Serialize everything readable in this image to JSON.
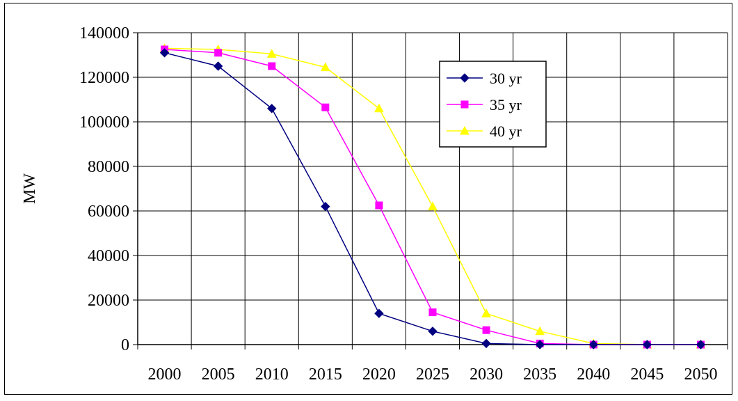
{
  "chart_data": {
    "type": "line",
    "title": "",
    "xlabel": "",
    "ylabel": "MW",
    "categories": [
      "2000",
      "2005",
      "2010",
      "2015",
      "2020",
      "2025",
      "2030",
      "2035",
      "2040",
      "2045",
      "2050"
    ],
    "ylim": [
      0,
      140000
    ],
    "yticks": [
      0,
      20000,
      40000,
      60000,
      80000,
      100000,
      120000,
      140000
    ],
    "ytick_labels": [
      "0",
      "20000",
      "40000",
      "60000",
      "80000",
      "100000",
      "120000",
      "140000"
    ],
    "grid": true,
    "legend_position": "top-right (inside plot)",
    "series": [
      {
        "name": "30 yr",
        "color": "#000080",
        "marker": "diamond",
        "values": [
          131000,
          125000,
          106000,
          62000,
          14000,
          6000,
          500,
          0,
          0,
          0,
          0
        ]
      },
      {
        "name": "35 yr",
        "color": "#FF00FF",
        "marker": "square",
        "values": [
          132500,
          131000,
          125000,
          106500,
          62500,
          14500,
          6500,
          500,
          0,
          0,
          0
        ]
      },
      {
        "name": "40 yr",
        "color": "#FFFF00",
        "marker": "triangle",
        "values": [
          133000,
          132500,
          130500,
          124500,
          106000,
          62000,
          14000,
          6000,
          500,
          0,
          0
        ]
      }
    ]
  }
}
